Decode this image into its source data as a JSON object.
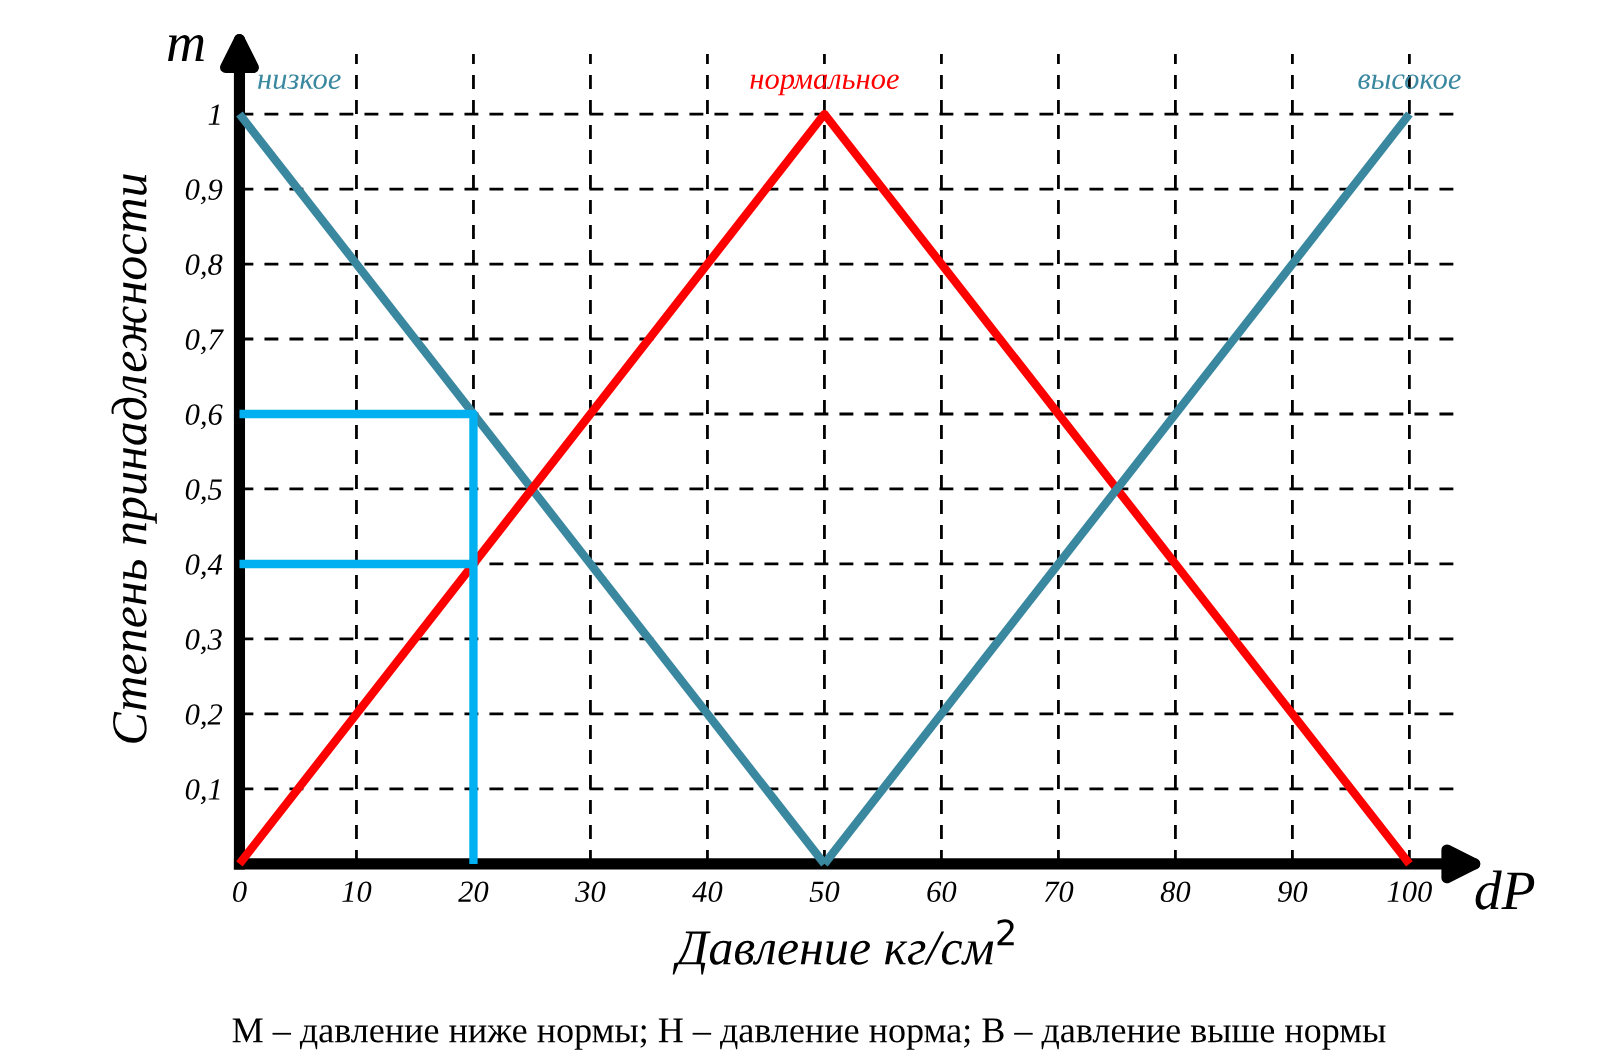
{
  "chart_data": {
    "type": "line",
    "xlabel": "Давление кг/см$^{2}$",
    "ylabel": "Степень принадлежности",
    "annotations": [
      "m",
      "dP",
      "М – давление ниже нормы; Н – давление норма; В – давление выше нормы"
    ],
    "xlim": [
      0,
      104
    ],
    "ylim": [
      0,
      1.08
    ],
    "xticks": [
      0,
      10,
      20,
      30,
      40,
      50,
      60,
      70,
      80,
      90,
      100
    ],
    "yticks": [
      {
        "value": 0.1,
        "label": "0,1"
      },
      {
        "value": 0.2,
        "label": "0,2"
      },
      {
        "value": 0.3,
        "label": "0,3"
      },
      {
        "value": 0.4,
        "label": "0,4"
      },
      {
        "value": 0.5,
        "label": "0,5"
      },
      {
        "value": 0.6,
        "label": "0,6"
      },
      {
        "value": 0.7,
        "label": "0,7"
      },
      {
        "value": 0.8,
        "label": "0,8"
      },
      {
        "value": 0.9,
        "label": "0,9"
      },
      {
        "value": 1,
        "label": "1"
      }
    ],
    "grid": true,
    "line_style": "solid",
    "marker": "none",
    "series": [
      {
        "name": "низкое",
        "color": "#3a87a0",
        "x": [
          0,
          50
        ],
        "values": [
          1,
          0
        ]
      },
      {
        "name": "нормальное",
        "color": "#ff0000",
        "x": [
          0,
          50,
          100
        ],
        "values": [
          0,
          1,
          0
        ]
      },
      {
        "name": "высокое",
        "color": "#3a87a0",
        "x": [
          50,
          100
        ],
        "values": [
          0,
          1
        ]
      },
      {
        "color": "#00b0f0",
        "x": [
          0,
          20,
          20
        ],
        "values": [
          0.6,
          0.6,
          0
        ]
      },
      {
        "color": "#00b0f0",
        "x": [
          0,
          20
        ],
        "values": [
          0.4,
          0.4
        ]
      }
    ]
  }
}
